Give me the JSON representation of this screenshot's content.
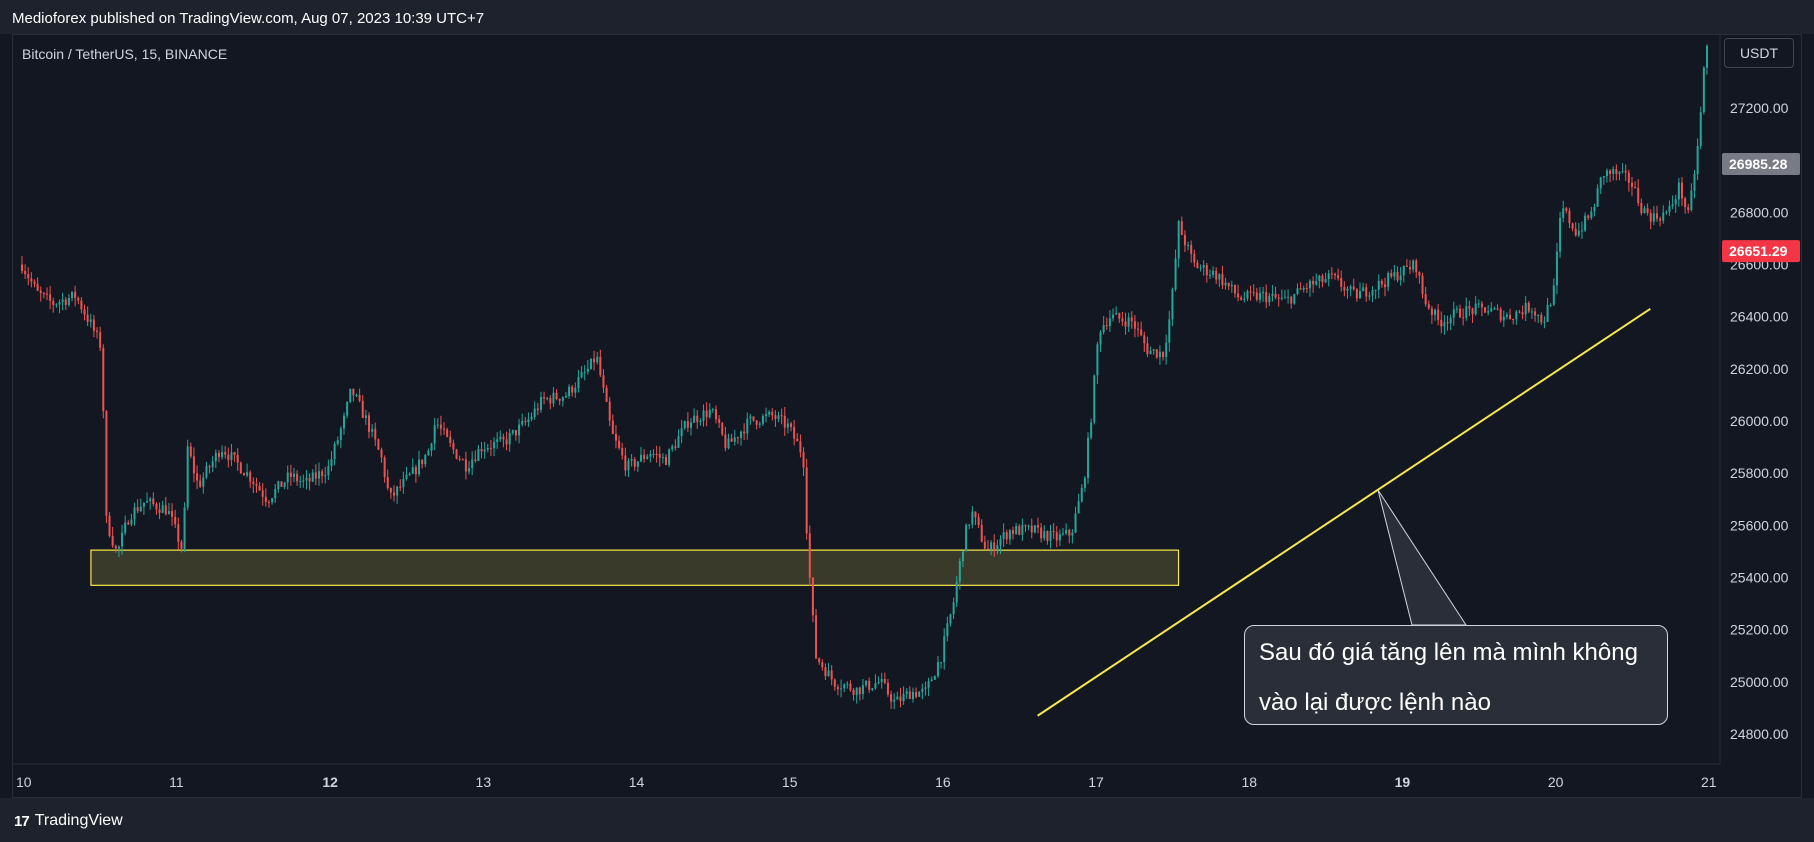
{
  "header": {
    "publisher_line": "Medioforex published on TradingView.com, Aug 07, 2023 10:39 UTC+7"
  },
  "chart_header": {
    "symbol_line": "Bitcoin / TetherUS, 15, BINANCE",
    "currency_button": "USDT"
  },
  "footer": {
    "logo_text": "TradingView",
    "logo_icon": "tradingview-logo-icon"
  },
  "annotation": {
    "line1": "Sau đó giá tăng lên mà mình không",
    "line2": "vào lại được lệnh nào"
  },
  "colors": {
    "background": "#131722",
    "up": "#26a69a",
    "down": "#ef5350",
    "zone_fill": "#3a3a2a",
    "zone_border": "#f7e84a",
    "trendline": "#f7e84a",
    "last_price_badge": "#f23645",
    "label_badge": "#787b86"
  },
  "chart_data": {
    "type": "candlestick",
    "title": "Bitcoin / TetherUS, 15, BINANCE",
    "x_ticks": [
      {
        "label": "10",
        "bold": false
      },
      {
        "label": "11",
        "bold": false
      },
      {
        "label": "12",
        "bold": true
      },
      {
        "label": "13",
        "bold": false
      },
      {
        "label": "14",
        "bold": false
      },
      {
        "label": "15",
        "bold": false
      },
      {
        "label": "16",
        "bold": false
      },
      {
        "label": "17",
        "bold": false
      },
      {
        "label": "18",
        "bold": false
      },
      {
        "label": "19",
        "bold": true
      },
      {
        "label": "20",
        "bold": false
      },
      {
        "label": "21",
        "bold": false
      }
    ],
    "y_ticks": [
      24800,
      25000,
      25200,
      25400,
      25600,
      25800,
      26000,
      26200,
      26400,
      26600,
      26800,
      27200
    ],
    "y_tick_labels": [
      "24800.00",
      "25000.00",
      "25200.00",
      "25400.00",
      "25600.00",
      "25800.00",
      "26000.00",
      "26200.00",
      "26400.00",
      "26600.00",
      "26800.00",
      "27200.00"
    ],
    "ylim": [
      24690,
      27480
    ],
    "xlim": [
      10,
      21.05
    ],
    "price_badges": [
      {
        "value": "26985.28",
        "price": 26985.28,
        "kind": "label"
      },
      {
        "value": "26651.29",
        "price": 26651.29,
        "kind": "last"
      }
    ],
    "zone": {
      "x_start": 10.45,
      "x_end": 17.55,
      "price_low": 25370,
      "price_high": 25505
    },
    "trendline": {
      "x1": 16.63,
      "price1": 24870,
      "x2": 20.63,
      "price2": 26430
    },
    "price_path": [
      [
        10.0,
        26600
      ],
      [
        10.1,
        26490
      ],
      [
        10.2,
        26450
      ],
      [
        10.35,
        26480
      ],
      [
        10.45,
        26370
      ],
      [
        10.52,
        26280
      ],
      [
        10.55,
        25620
      ],
      [
        10.62,
        25490
      ],
      [
        10.7,
        25640
      ],
      [
        10.8,
        25690
      ],
      [
        10.95,
        25660
      ],
      [
        11.02,
        25550
      ],
      [
        11.05,
        25500
      ],
      [
        11.08,
        25900
      ],
      [
        11.15,
        25750
      ],
      [
        11.3,
        25900
      ],
      [
        11.5,
        25780
      ],
      [
        11.6,
        25700
      ],
      [
        11.75,
        25790
      ],
      [
        11.85,
        25760
      ],
      [
        12.0,
        25820
      ],
      [
        12.1,
        26000
      ],
      [
        12.15,
        26120
      ],
      [
        12.25,
        26000
      ],
      [
        12.35,
        25850
      ],
      [
        12.4,
        25700
      ],
      [
        12.55,
        25800
      ],
      [
        12.65,
        25880
      ],
      [
        12.7,
        26000
      ],
      [
        12.8,
        25900
      ],
      [
        12.9,
        25830
      ],
      [
        13.0,
        25900
      ],
      [
        13.15,
        25920
      ],
      [
        13.3,
        26000
      ],
      [
        13.4,
        26080
      ],
      [
        13.55,
        26100
      ],
      [
        13.7,
        26200
      ],
      [
        13.75,
        26250
      ],
      [
        13.85,
        25950
      ],
      [
        13.95,
        25820
      ],
      [
        14.1,
        25880
      ],
      [
        14.2,
        25850
      ],
      [
        14.35,
        26000
      ],
      [
        14.5,
        26040
      ],
      [
        14.6,
        25900
      ],
      [
        14.75,
        26000
      ],
      [
        14.9,
        26020
      ],
      [
        15.0,
        25980
      ],
      [
        15.1,
        25870
      ],
      [
        15.13,
        25500
      ],
      [
        15.18,
        25100
      ],
      [
        15.3,
        25000
      ],
      [
        15.45,
        24970
      ],
      [
        15.6,
        25000
      ],
      [
        15.7,
        24920
      ],
      [
        15.8,
        24960
      ],
      [
        15.9,
        24960
      ],
      [
        16.0,
        25100
      ],
      [
        16.08,
        25300
      ],
      [
        16.15,
        25550
      ],
      [
        16.2,
        25650
      ],
      [
        16.3,
        25500
      ],
      [
        16.45,
        25580
      ],
      [
        16.6,
        25580
      ],
      [
        16.75,
        25550
      ],
      [
        16.85,
        25570
      ],
      [
        16.93,
        25760
      ],
      [
        16.98,
        26020
      ],
      [
        17.03,
        26350
      ],
      [
        17.1,
        26400
      ],
      [
        17.25,
        26380
      ],
      [
        17.35,
        26270
      ],
      [
        17.45,
        26260
      ],
      [
        17.5,
        26420
      ],
      [
        17.55,
        26750
      ],
      [
        17.65,
        26600
      ],
      [
        17.8,
        26560
      ],
      [
        17.95,
        26470
      ],
      [
        18.1,
        26480
      ],
      [
        18.25,
        26460
      ],
      [
        18.4,
        26520
      ],
      [
        18.55,
        26550
      ],
      [
        18.7,
        26480
      ],
      [
        18.85,
        26520
      ],
      [
        19.0,
        26570
      ],
      [
        19.1,
        26600
      ],
      [
        19.15,
        26470
      ],
      [
        19.25,
        26380
      ],
      [
        19.4,
        26420
      ],
      [
        19.55,
        26430
      ],
      [
        19.7,
        26400
      ],
      [
        19.85,
        26440
      ],
      [
        19.93,
        26380
      ],
      [
        20.0,
        26500
      ],
      [
        20.05,
        26820
      ],
      [
        20.15,
        26720
      ],
      [
        20.25,
        26800
      ],
      [
        20.32,
        26950
      ],
      [
        20.4,
        26950
      ],
      [
        20.5,
        26920
      ],
      [
        20.58,
        26810
      ],
      [
        20.65,
        26780
      ],
      [
        20.75,
        26800
      ],
      [
        20.82,
        26900
      ],
      [
        20.88,
        26780
      ],
      [
        20.95,
        27100
      ],
      [
        20.98,
        27350
      ],
      [
        21.0,
        27430
      ]
    ]
  }
}
